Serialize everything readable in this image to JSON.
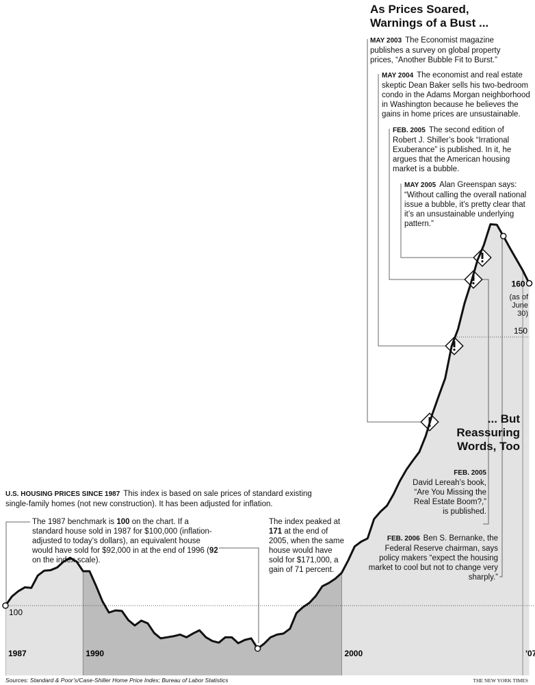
{
  "chart_data": {
    "type": "line",
    "title": [
      "As Prices Soared,",
      "Warnings of a Bust ..."
    ],
    "subtitle_label": "U.S. HOUSING PRICES SINCE 1987",
    "subtitle": "This index is based on sale prices of standard existing single-family homes (not new construction). It has been adjusted for inflation.",
    "x": [
      1987,
      1987.25,
      1987.5,
      1987.75,
      1988,
      1988.25,
      1988.5,
      1988.75,
      1989,
      1989.25,
      1989.5,
      1989.75,
      1990,
      1990.25,
      1990.5,
      1990.75,
      1991,
      1991.25,
      1991.5,
      1991.75,
      1992,
      1992.25,
      1992.5,
      1992.75,
      1993,
      1993.25,
      1993.5,
      1993.75,
      1994,
      1994.25,
      1994.5,
      1994.75,
      1995,
      1995.25,
      1995.5,
      1995.75,
      1996,
      1996.25,
      1996.5,
      1996.75,
      1997,
      1997.25,
      1997.5,
      1997.75,
      1998,
      1998.25,
      1998.5,
      1998.75,
      1999,
      1999.25,
      1999.5,
      1999.75,
      2000,
      2000.25,
      2000.5,
      2000.75,
      2001,
      2001.25,
      2001.5,
      2001.75,
      2002,
      2002.25,
      2002.5,
      2002.75,
      2003,
      2003.25,
      2003.5,
      2003.75,
      2004,
      2004.25,
      2004.5,
      2004.75,
      2005,
      2005.25,
      2005.5,
      2005.75,
      2006,
      2006.25,
      2006.5,
      2006.75,
      2007,
      2007.25
    ],
    "values": [
      100,
      101.7,
      102.7,
      103.4,
      103.3,
      105.6,
      106.5,
      106.6,
      107.1,
      108.2,
      108.9,
      108.2,
      106.4,
      106.4,
      103.7,
      100.8,
      98.7,
      99.1,
      99,
      97.3,
      96.3,
      97.2,
      96.7,
      94.9,
      93.9,
      94.1,
      94.3,
      94.6,
      94.1,
      94.8,
      95.4,
      94.1,
      93.4,
      93.1,
      94.1,
      94.1,
      93,
      93.6,
      93.9,
      92,
      92.9,
      94.1,
      94.6,
      94.8,
      95.7,
      98.6,
      99.7,
      100.5,
      101.8,
      103.6,
      104.2,
      105,
      106.1,
      108.4,
      111,
      111.9,
      112.5,
      116.1,
      117.5,
      118.6,
      120.7,
      123.2,
      125.3,
      127,
      128.6,
      131.6,
      135.6,
      139,
      142.3,
      148.3,
      151.5,
      156.3,
      160.1,
      164.3,
      167.2,
      171,
      170.9,
      168.8,
      166.6,
      164.5,
      162.4,
      160
    ],
    "color": "#111111",
    "xlim": [
      1987,
      2007.5
    ],
    "ylim": [
      87,
      175
    ],
    "xticks": [
      1987,
      1990,
      2000,
      {
        "value": 2007,
        "label": "'07"
      }
    ],
    "yticks": [
      100,
      150
    ],
    "grid": true,
    "highlight_range": [
      1990,
      2000
    ],
    "last_point_note": "(as of June 30)",
    "benchmark_note": [
      "The 1987 benchmark is ",
      "100",
      " on the chart. If a standard house sold in 1987 for $100,000 (inflation-adjusted to today’s dollars), an equivalent house would have sold for $92,000 in at the end of 1996 (",
      "92",
      " on the index scale)."
    ],
    "peak_note": [
      "The index peaked at ",
      "171",
      " at the end of 2005, when the same house would have sold for $171,000, a gain of 71 percent."
    ],
    "warnings": [
      {
        "date": "MAY 2003",
        "text": "The Economist magazine publishes a survey on global property prices, “Another Bubble Fit to Burst.”"
      },
      {
        "date": "MAY 2004",
        "text": "The economist and real estate skeptic Dean Baker sells his two-bedroom condo in the Adams Morgan neighborhood in Washington because he believes the gains in home prices are unsustainable."
      },
      {
        "date": "FEB. 2005",
        "text": "The second edition of Robert J. Shiller’s book “Irrational Exuberance” is published. In it, he argues that the American housing market is a bubble."
      },
      {
        "date": "MAY 2005",
        "text": "Alan Greenspan says: “Without calling the overall national issue a bubble, it’s pretty clear that it’s an unsustainable underlying pattern.”"
      }
    ],
    "reassurances_title": [
      "... But",
      "Reassuring",
      "Words, Too"
    ],
    "reassurances": [
      {
        "date": "FEB. 2005",
        "text": "David Lereah’s book, “Are You Missing the Real Estate Boom?,” is published."
      },
      {
        "date": "FEB. 2006",
        "text": "Ben S. Bernanke, the Federal Reserve chairman, says policy makers “expect the housing market to cool but not to change very sharply.”"
      }
    ],
    "source": "Sources: Standard & Poor’s/Case-Shiller Home Price Index; Bureau of Labor Statistics",
    "credit": "THE NEW YORK TIMES"
  }
}
